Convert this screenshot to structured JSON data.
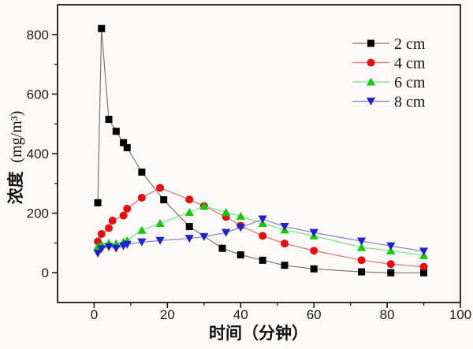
{
  "figure": {
    "background": "#fbfaf8",
    "axis_color": "#1a1a1a"
  },
  "chart_data": {
    "type": "line",
    "title": "",
    "xlabel": "时间（分钟）",
    "ylabel": "浓度 (mg/m³)",
    "ylabel_cjk": "浓度",
    "ylabel_unit": "(mg/m³)",
    "xlim": [
      -10,
      100
    ],
    "ylim": [
      -100,
      900
    ],
    "x_major_ticks": [
      0,
      20,
      40,
      60,
      80,
      100
    ],
    "x_minor_ticks": [
      10,
      30,
      50,
      70,
      90
    ],
    "y_major_ticks": [
      0,
      200,
      400,
      600,
      800
    ],
    "y_minor_ticks": [
      100,
      300,
      500,
      700
    ],
    "grid": false,
    "frame": true,
    "legend": {
      "position": "top-right",
      "items": [
        "2 cm",
        "4 cm",
        "6 cm",
        "8 cm"
      ]
    },
    "series": [
      {
        "name": "2 cm",
        "marker": "square",
        "color": "#000000",
        "line_color": "#787878",
        "x": [
          1,
          2,
          4,
          6,
          8,
          9,
          13,
          19,
          26,
          35,
          40,
          46,
          52,
          60,
          73,
          81,
          90
        ],
        "y": [
          235,
          820,
          515,
          475,
          437,
          420,
          338,
          245,
          155,
          82,
          60,
          42,
          25,
          13,
          3,
          0,
          0
        ]
      },
      {
        "name": "4 cm",
        "marker": "circle",
        "color": "#e60f0f",
        "line_color": "#d97070",
        "x": [
          1,
          2,
          4,
          5,
          8,
          9,
          13,
          18,
          26,
          30,
          36,
          40,
          46,
          52,
          60,
          73,
          81,
          90
        ],
        "y": [
          105,
          130,
          150,
          175,
          192,
          215,
          252,
          285,
          246,
          224,
          187,
          158,
          124,
          98,
          74,
          42,
          29,
          20
        ]
      },
      {
        "name": "6 cm",
        "marker": "triangle-up",
        "color": "#0ccc0c",
        "line_color": "#82dd82",
        "x": [
          1,
          2,
          4,
          6,
          8,
          9,
          13,
          18,
          26,
          30,
          36,
          40,
          46,
          52,
          60,
          73,
          81,
          90
        ],
        "y": [
          88,
          95,
          100,
          98,
          103,
          108,
          143,
          166,
          203,
          224,
          203,
          190,
          166,
          144,
          124,
          85,
          74,
          58
        ]
      },
      {
        "name": "8 cm",
        "marker": "triangle-down",
        "color": "#2121cc",
        "line_color": "#8080c4",
        "x": [
          1,
          2,
          4,
          6,
          8,
          9,
          13,
          18,
          26,
          30,
          36,
          40,
          46,
          52,
          60,
          73,
          81,
          90
        ],
        "y": [
          65,
          80,
          87,
          82,
          90,
          95,
          103,
          108,
          115,
          121,
          135,
          152,
          180,
          155,
          135,
          106,
          90,
          72
        ]
      }
    ]
  }
}
